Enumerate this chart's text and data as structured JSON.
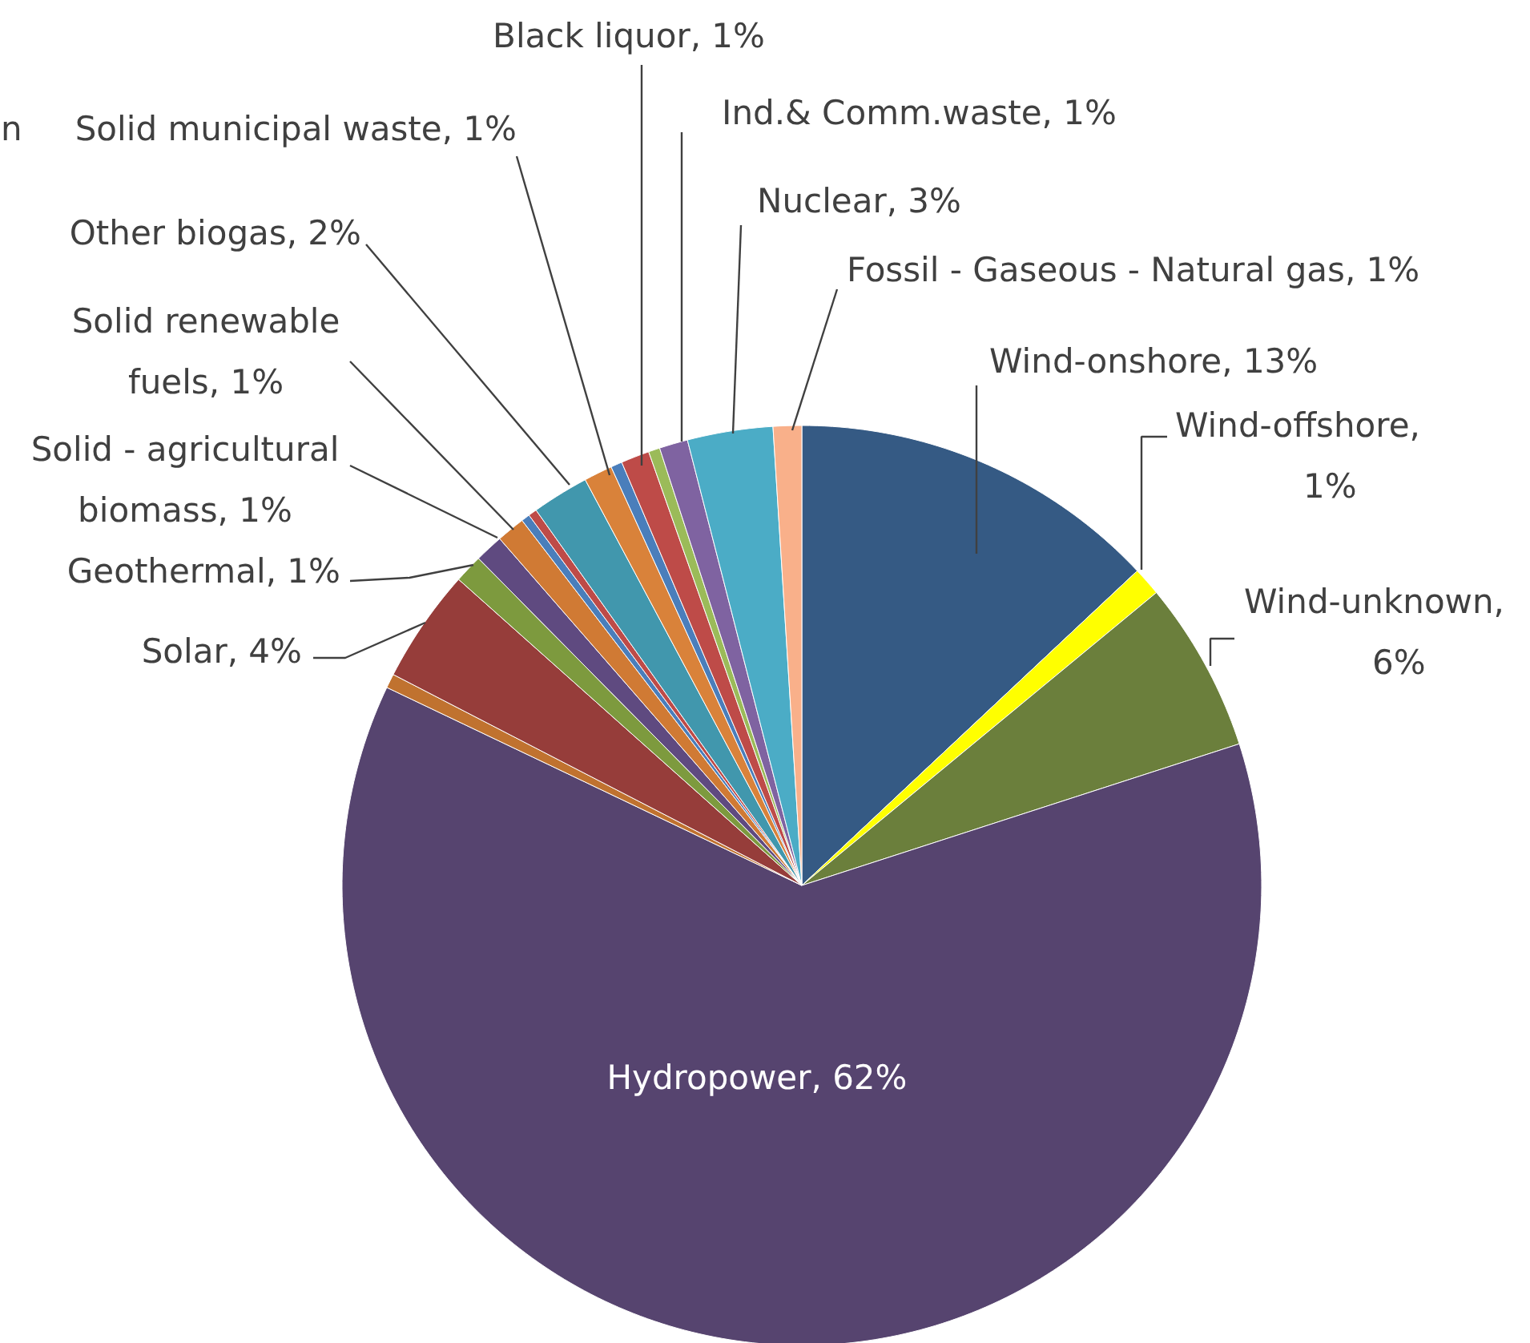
{
  "chart_data": {
    "type": "pie",
    "categories": [
      "Wind-onshore",
      "Wind-offshore",
      "Wind-unknown",
      "Hydropower",
      null,
      "Solar",
      "Geothermal",
      "Solid - agricultural biomass",
      "Solid renewable fuels",
      null,
      null,
      "Other biogas",
      "Solid municipal waste",
      null,
      "Black liquor",
      null,
      "Ind.& Comm.waste",
      "Nuclear",
      "Fossil - Gaseous - Natural gas"
    ],
    "values": [
      13,
      1,
      6,
      62,
      0.5,
      4,
      1,
      1,
      1,
      0.3,
      0.3,
      2,
      1,
      0.4,
      1,
      0.4,
      1,
      3,
      1
    ],
    "value_labels": [
      ", 13%",
      ", 1%",
      ", 6%",
      ", 62%",
      null,
      ", 4%",
      ", 1%",
      ", 1%",
      ", 1%",
      null,
      null,
      ", 2%",
      ", 1%",
      null,
      ", 1%",
      null,
      ", 1%",
      ", 3%",
      ", 1%"
    ],
    "colors": [
      "#355a84",
      "#ffff00",
      "#6b7f3c",
      "#56446f",
      "#c0722f",
      "#963d3a",
      "#7d9a3e",
      "#5f4a80",
      "#d07a34",
      "#4a7ebb",
      "#be4b48",
      "#4197ad",
      "#d9823a",
      "#4a7ebb",
      "#be4b48",
      "#9bbb59",
      "#7f63a1",
      "#4bacc6",
      "#f9b08a"
    ],
    "annotations": [
      "n"
    ]
  }
}
